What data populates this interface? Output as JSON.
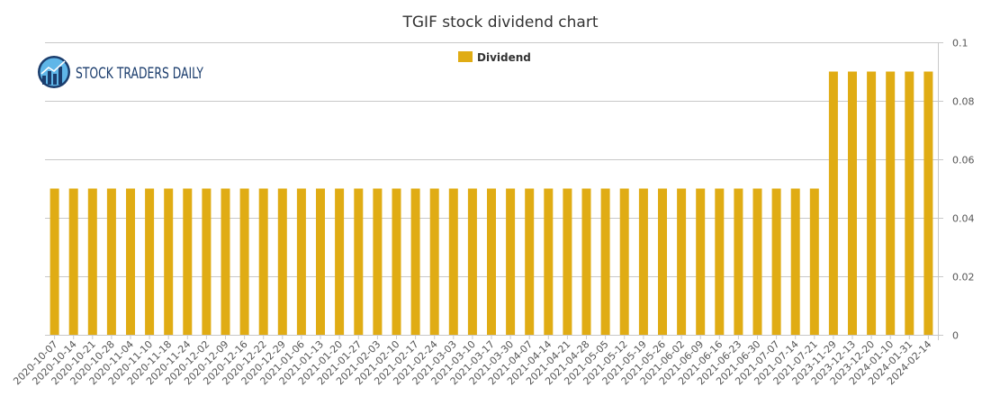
{
  "logo": {
    "text": "STOCK TRADERS DAILY"
  },
  "chart_data": {
    "type": "bar",
    "title": "TGIF stock dividend chart",
    "xlabel": "",
    "ylabel": "",
    "ylim": [
      0,
      0.1
    ],
    "yticks": [
      0,
      0.02,
      0.04,
      0.06,
      0.08,
      0.1
    ],
    "ytick_labels": [
      "0",
      "0.02",
      "0.04",
      "0.06",
      "0.08",
      "0.1"
    ],
    "grid": true,
    "legend_position": "top-center",
    "bar_color": "#e0ac14",
    "categories": [
      "2020-10-07",
      "2020-10-14",
      "2020-10-21",
      "2020-10-28",
      "2020-11-04",
      "2020-11-10",
      "2020-11-18",
      "2020-11-24",
      "2020-12-02",
      "2020-12-09",
      "2020-12-16",
      "2020-12-22",
      "2020-12-29",
      "2021-01-06",
      "2021-01-13",
      "2021-01-20",
      "2021-01-27",
      "2021-02-03",
      "2021-02-10",
      "2021-02-17",
      "2021-02-24",
      "2021-03-03",
      "2021-03-10",
      "2021-03-17",
      "2021-03-30",
      "2021-04-07",
      "2021-04-14",
      "2021-04-21",
      "2021-04-28",
      "2021-05-05",
      "2021-05-12",
      "2021-05-19",
      "2021-05-26",
      "2021-06-02",
      "2021-06-09",
      "2021-06-16",
      "2021-06-23",
      "2021-06-30",
      "2021-07-07",
      "2021-07-14",
      "2021-07-21",
      "2023-11-29",
      "2023-12-13",
      "2023-12-20",
      "2024-01-10",
      "2024-01-31",
      "2024-02-14"
    ],
    "series": [
      {
        "name": "Dividend",
        "values": [
          0.05,
          0.05,
          0.05,
          0.05,
          0.05,
          0.05,
          0.05,
          0.05,
          0.05,
          0.05,
          0.05,
          0.05,
          0.05,
          0.05,
          0.05,
          0.05,
          0.05,
          0.05,
          0.05,
          0.05,
          0.05,
          0.05,
          0.05,
          0.05,
          0.05,
          0.05,
          0.05,
          0.05,
          0.05,
          0.05,
          0.05,
          0.05,
          0.05,
          0.05,
          0.05,
          0.05,
          0.05,
          0.05,
          0.05,
          0.05,
          0.05,
          0.09,
          0.09,
          0.09,
          0.09,
          0.09,
          0.09
        ]
      }
    ]
  }
}
